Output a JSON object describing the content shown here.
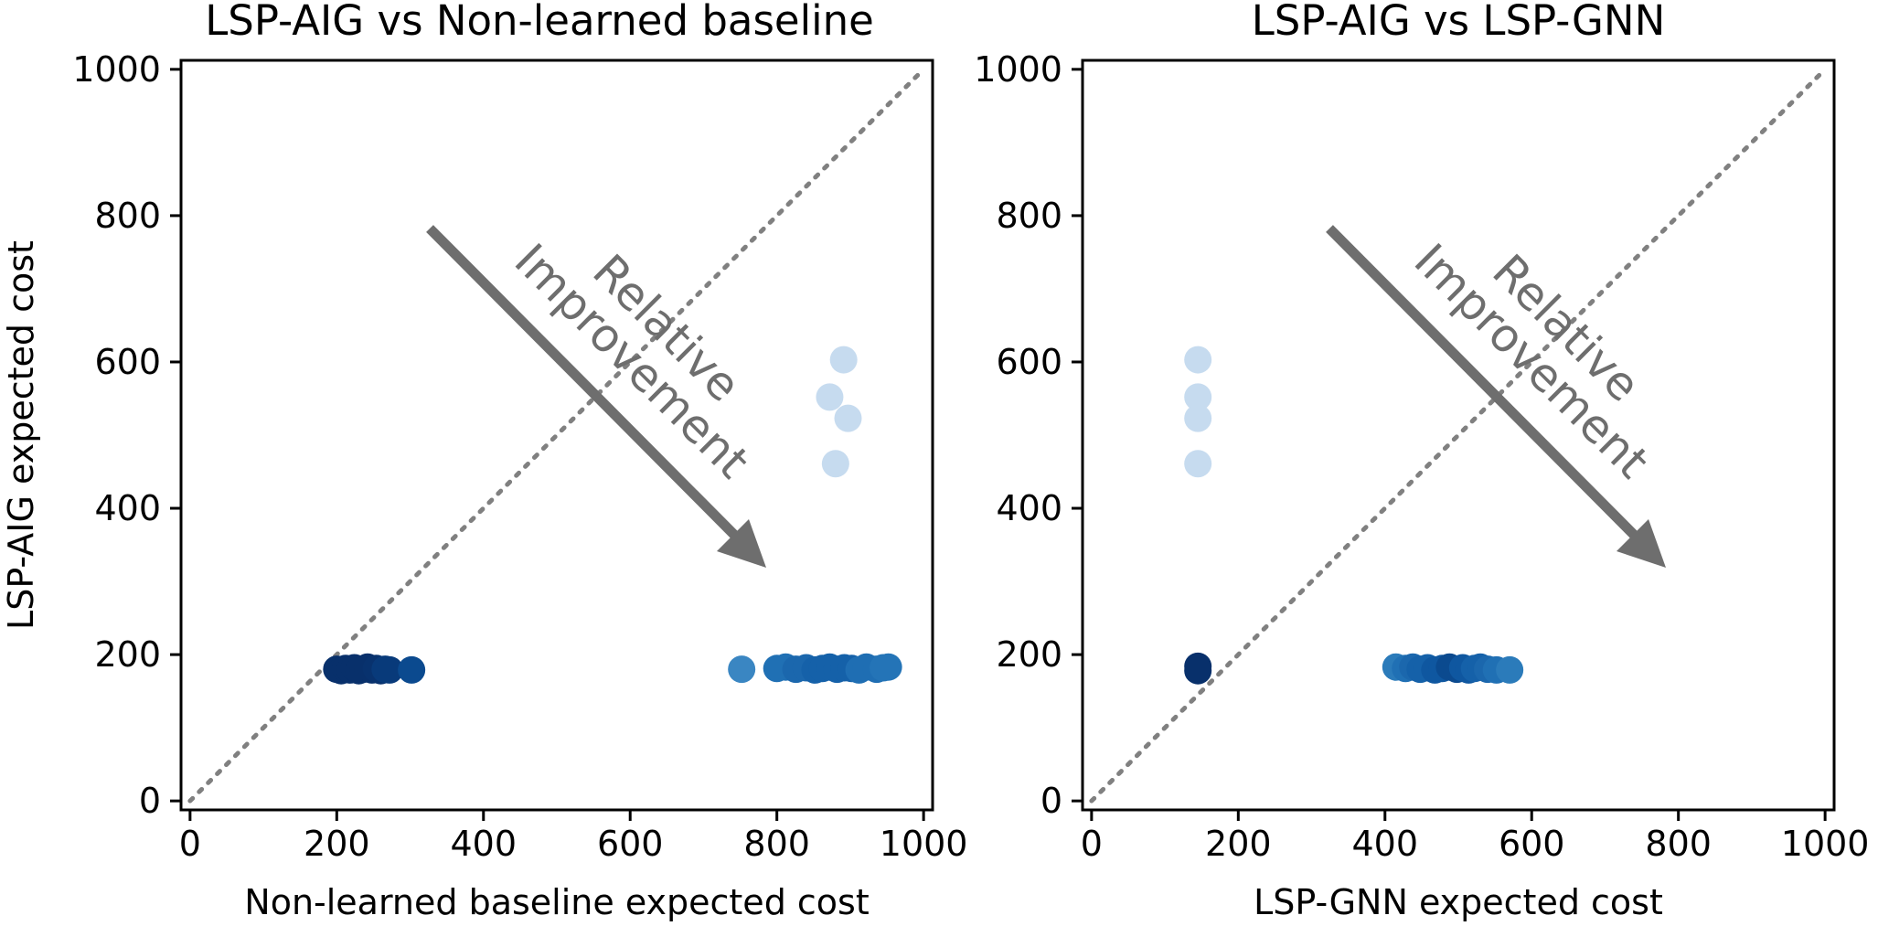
{
  "chart_data": [
    {
      "type": "scatter",
      "title": "LSP-AIG vs Non-learned baseline",
      "xlabel": "Non-learned baseline expected cost",
      "ylabel": "LSP-AIG expected cost",
      "xlim": [
        0,
        1000
      ],
      "ylim": [
        0,
        1000
      ],
      "xticks": [
        "0",
        "200",
        "400",
        "600",
        "800",
        "1000"
      ],
      "yticks": [
        "0",
        "200",
        "400",
        "600",
        "800",
        "1000"
      ],
      "diagonal": true,
      "annotation": {
        "line1": "Relative",
        "line2": "Improvement"
      },
      "points": [
        {
          "x": 200,
          "y": 180,
          "c": "#08306b"
        },
        {
          "x": 206,
          "y": 178,
          "c": "#08306b"
        },
        {
          "x": 212,
          "y": 181,
          "c": "#08306b"
        },
        {
          "x": 218,
          "y": 179,
          "c": "#08306b"
        },
        {
          "x": 224,
          "y": 182,
          "c": "#08306b"
        },
        {
          "x": 230,
          "y": 178,
          "c": "#08306b"
        },
        {
          "x": 236,
          "y": 180,
          "c": "#08306b"
        },
        {
          "x": 242,
          "y": 183,
          "c": "#08306b"
        },
        {
          "x": 248,
          "y": 179,
          "c": "#08306b"
        },
        {
          "x": 254,
          "y": 181,
          "c": "#08326e"
        },
        {
          "x": 260,
          "y": 178,
          "c": "#08326e"
        },
        {
          "x": 266,
          "y": 180,
          "c": "#083a7a"
        },
        {
          "x": 272,
          "y": 179,
          "c": "#083a7a"
        },
        {
          "x": 302,
          "y": 179,
          "c": "#0b4a8f"
        },
        {
          "x": 752,
          "y": 180,
          "c": "#3a86c2"
        },
        {
          "x": 800,
          "y": 181,
          "c": "#2070b4"
        },
        {
          "x": 812,
          "y": 183,
          "c": "#2070b4"
        },
        {
          "x": 826,
          "y": 180,
          "c": "#1b67ad"
        },
        {
          "x": 840,
          "y": 182,
          "c": "#1b67ad"
        },
        {
          "x": 852,
          "y": 179,
          "c": "#1561a9"
        },
        {
          "x": 862,
          "y": 181,
          "c": "#1561a9"
        },
        {
          "x": 872,
          "y": 183,
          "c": "#1561a9"
        },
        {
          "x": 882,
          "y": 180,
          "c": "#1561a9"
        },
        {
          "x": 892,
          "y": 182,
          "c": "#1561a9"
        },
        {
          "x": 902,
          "y": 181,
          "c": "#1561a9"
        },
        {
          "x": 912,
          "y": 179,
          "c": "#1f6eb3"
        },
        {
          "x": 922,
          "y": 183,
          "c": "#1f6eb3"
        },
        {
          "x": 936,
          "y": 180,
          "c": "#1f6eb3"
        },
        {
          "x": 945,
          "y": 182,
          "c": "#2474b7"
        },
        {
          "x": 952,
          "y": 183,
          "c": "#2474b7"
        },
        {
          "x": 891,
          "y": 603,
          "c": "#c6dbef"
        },
        {
          "x": 872,
          "y": 552,
          "c": "#c6dbef"
        },
        {
          "x": 897,
          "y": 523,
          "c": "#c6dbef"
        },
        {
          "x": 880,
          "y": 461,
          "c": "#c6dbef"
        }
      ]
    },
    {
      "type": "scatter",
      "title": "LSP-AIG vs LSP-GNN",
      "xlabel": "LSP-GNN expected cost",
      "ylabel": "",
      "xlim": [
        0,
        1000
      ],
      "ylim": [
        0,
        1000
      ],
      "xticks": [
        "0",
        "200",
        "400",
        "600",
        "800",
        "1000"
      ],
      "yticks": [
        "0",
        "200",
        "400",
        "600",
        "800",
        "1000"
      ],
      "diagonal": true,
      "annotation": {
        "line1": "Relative",
        "line2": "Improvement"
      },
      "points": [
        {
          "x": 145,
          "y": 603,
          "c": "#c6dbef"
        },
        {
          "x": 145,
          "y": 552,
          "c": "#c6dbef"
        },
        {
          "x": 145,
          "y": 523,
          "c": "#c6dbef"
        },
        {
          "x": 145,
          "y": 461,
          "c": "#c6dbef"
        },
        {
          "x": 145,
          "y": 184,
          "c": "#08306b"
        },
        {
          "x": 145,
          "y": 178,
          "c": "#08306b"
        },
        {
          "x": 415,
          "y": 183,
          "c": "#2b7bba"
        },
        {
          "x": 428,
          "y": 181,
          "c": "#2070b4"
        },
        {
          "x": 438,
          "y": 183,
          "c": "#1b67ad"
        },
        {
          "x": 448,
          "y": 180,
          "c": "#1561a9"
        },
        {
          "x": 458,
          "y": 182,
          "c": "#1561a9"
        },
        {
          "x": 468,
          "y": 179,
          "c": "#0f57a0"
        },
        {
          "x": 478,
          "y": 181,
          "c": "#0f57a0"
        },
        {
          "x": 488,
          "y": 183,
          "c": "#0b4a8f"
        },
        {
          "x": 498,
          "y": 180,
          "c": "#0b4a8f"
        },
        {
          "x": 506,
          "y": 182,
          "c": "#0f57a0"
        },
        {
          "x": 514,
          "y": 179,
          "c": "#0f57a0"
        },
        {
          "x": 522,
          "y": 181,
          "c": "#1561a9"
        },
        {
          "x": 530,
          "y": 183,
          "c": "#1561a9"
        },
        {
          "x": 540,
          "y": 180,
          "c": "#1b67ad"
        },
        {
          "x": 552,
          "y": 179,
          "c": "#2070b4"
        },
        {
          "x": 570,
          "y": 179,
          "c": "#2b7bba"
        }
      ]
    }
  ]
}
